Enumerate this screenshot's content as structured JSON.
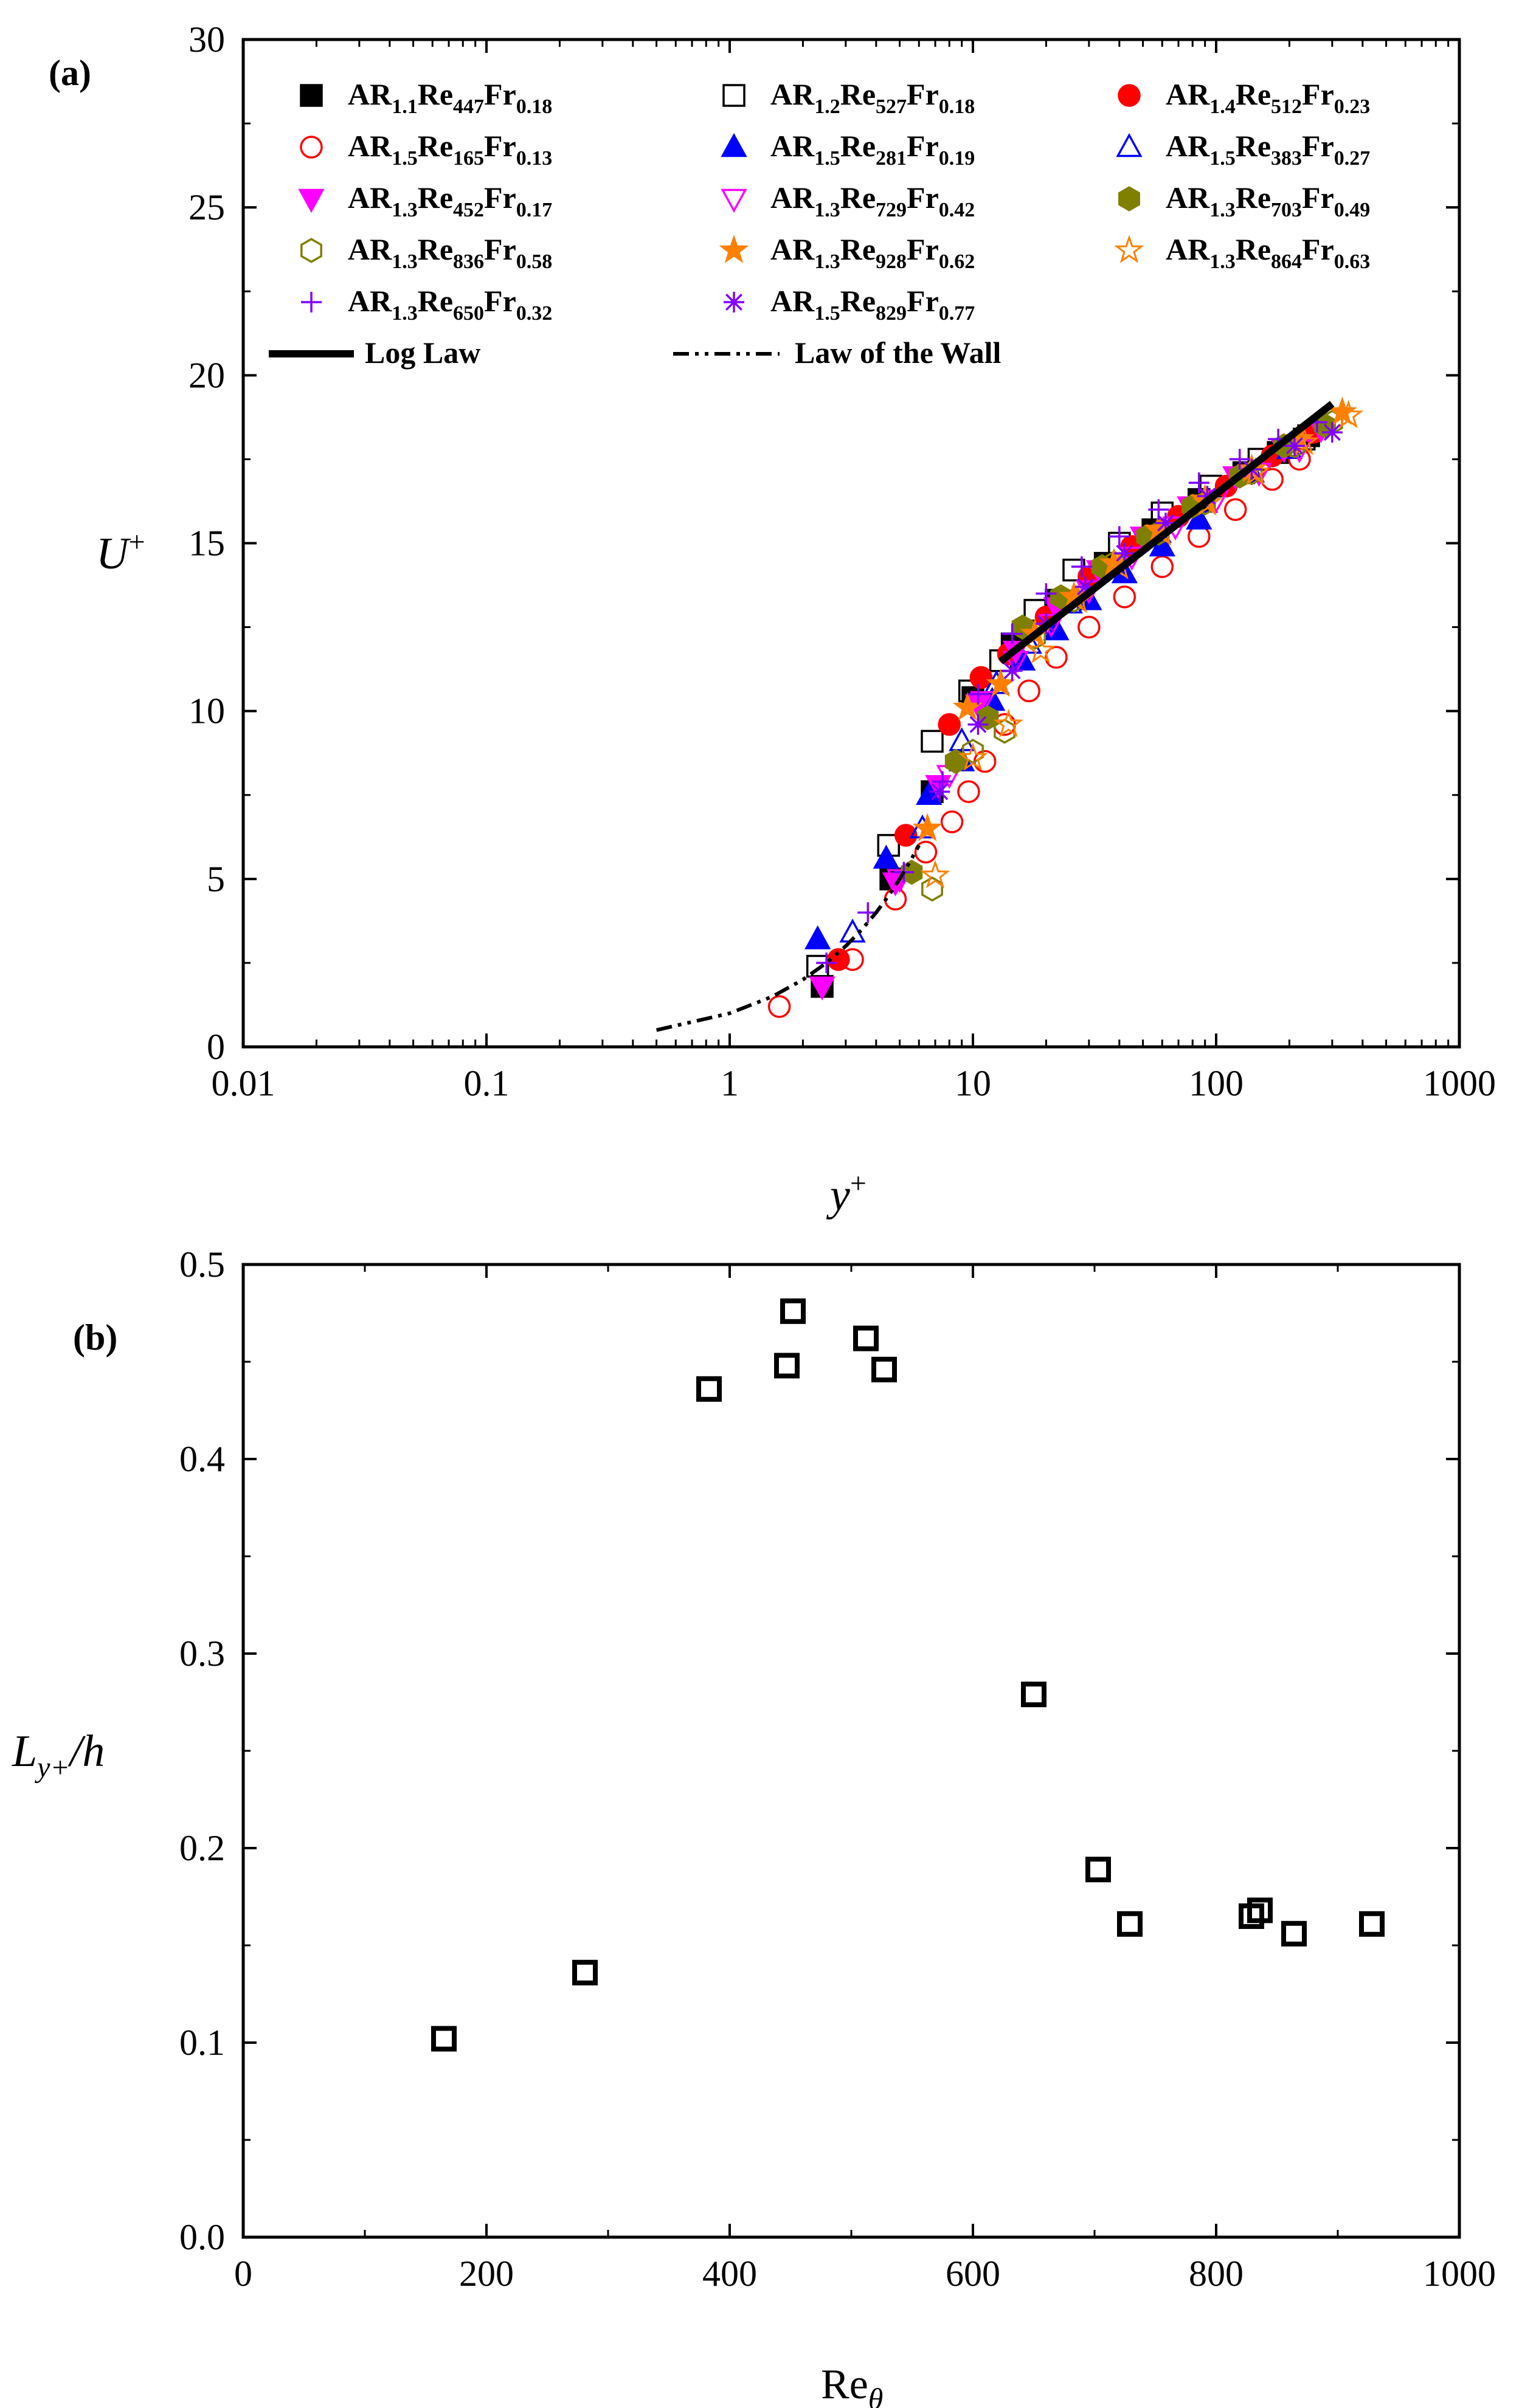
{
  "colors": {
    "black": "#000000",
    "red": "#ff0000",
    "blue": "#0000ff",
    "magenta": "#ff00ff",
    "olive": "#808000",
    "orange": "#ff8000",
    "violet": "#8000ff"
  },
  "chart_data": [
    {
      "panel_label": "(a)",
      "type": "scatter",
      "xscale": "log",
      "xlim": [
        0.01,
        1000
      ],
      "ylim": [
        0,
        30
      ],
      "xlabel": "y",
      "xlabel_sup": "+",
      "ylabel": "U",
      "ylabel_sup": "+",
      "x_ticks": [
        0.01,
        0.1,
        1,
        10,
        100,
        1000
      ],
      "x_tick_labels": [
        "0.01",
        "0.1",
        "1",
        "10",
        "100",
        "1000"
      ],
      "y_ticks": [
        0,
        5,
        10,
        15,
        20,
        25,
        30
      ],
      "y_tick_labels": [
        "0",
        "5",
        "10",
        "15",
        "20",
        "25",
        "30"
      ],
      "legend_position": "top",
      "series": [
        {
          "label": "AR",
          "ar": "1.1",
          "re": "447",
          "fr": "0.18",
          "marker": "square",
          "filled": true,
          "color": "#000000",
          "x": [
            2.4,
            4.6,
            6.8,
            10.0,
            14.5,
            22,
            35,
            55,
            85,
            130,
            180,
            240
          ],
          "y": [
            1.8,
            5.0,
            7.6,
            10.4,
            12.0,
            13.3,
            14.4,
            15.4,
            16.3,
            17.1,
            17.7,
            18.2
          ]
        },
        {
          "label": "AR",
          "ar": "1.2",
          "re": "527",
          "fr": "0.18",
          "marker": "square",
          "filled": false,
          "color": "#000000",
          "x": [
            2.3,
            4.5,
            6.8,
            9.7,
            13.0,
            18,
            26,
            40,
            60,
            95,
            150,
            230
          ],
          "y": [
            2.4,
            6.0,
            9.1,
            10.6,
            11.5,
            13.0,
            14.2,
            15.0,
            15.9,
            16.7,
            17.5,
            18.1
          ]
        },
        {
          "label": "AR",
          "ar": "1.4",
          "re": "512",
          "fr": "0.23",
          "marker": "circle",
          "filled": true,
          "color": "#ff0000",
          "x": [
            2.8,
            5.3,
            8.0,
            10.8,
            14.0,
            20,
            30,
            45,
            70,
            110,
            170,
            250
          ],
          "y": [
            2.6,
            6.3,
            9.6,
            11.0,
            11.7,
            12.8,
            14.0,
            14.9,
            15.8,
            16.7,
            17.6,
            18.3
          ]
        },
        {
          "label": "AR",
          "ar": "1.5",
          "re": "165",
          "fr": "0.13",
          "marker": "circle",
          "filled": false,
          "color": "#ff0000",
          "x": [
            1.6,
            3.2,
            4.8,
            6.4,
            8.2,
            9.6,
            11.2,
            13.5,
            17,
            22,
            30,
            42,
            60,
            85,
            120,
            170,
            220
          ],
          "y": [
            1.2,
            2.6,
            4.4,
            5.8,
            6.7,
            7.6,
            8.5,
            9.6,
            10.6,
            11.6,
            12.5,
            13.4,
            14.3,
            15.2,
            16.0,
            16.9,
            17.5
          ]
        },
        {
          "label": "AR",
          "ar": "1.5",
          "re": "281",
          "fr": "0.19",
          "marker": "triangle-up",
          "filled": true,
          "color": "#0000ff",
          "x": [
            2.3,
            4.4,
            6.6,
            9.0,
            12.0,
            16,
            22,
            30,
            42,
            60,
            85
          ],
          "y": [
            3.2,
            5.6,
            7.5,
            8.5,
            10.3,
            11.5,
            12.4,
            13.3,
            14.1,
            14.9,
            15.7
          ]
        },
        {
          "label": "AR",
          "ar": "1.5",
          "re": "383",
          "fr": "0.27",
          "marker": "triangle-up",
          "filled": false,
          "color": "#0000ff",
          "x": [
            3.2,
            6.2,
            9.0,
            12.5,
            17,
            25,
            38,
            58,
            90,
            140,
            200
          ],
          "y": [
            3.4,
            6.5,
            9.1,
            10.8,
            12.0,
            13.2,
            14.3,
            15.3,
            16.2,
            17.1,
            17.8
          ]
        },
        {
          "label": "AR",
          "ar": "1.3",
          "re": "452",
          "fr": "0.17",
          "marker": "triangle-down",
          "filled": true,
          "color": "#ff00ff",
          "x": [
            2.4,
            4.8,
            7.2,
            10.5,
            15,
            22,
            33,
            50,
            78,
            120,
            190,
            270
          ],
          "y": [
            1.8,
            4.9,
            7.8,
            10.2,
            11.8,
            13.1,
            14.2,
            15.2,
            16.1,
            17.0,
            17.8,
            18.4
          ]
        },
        {
          "label": "AR",
          "ar": "1.3",
          "re": "729",
          "fr": "0.42",
          "marker": "triangle-down",
          "filled": false,
          "color": "#ff00ff",
          "x": [
            5.0,
            8.0,
            11.0,
            15,
            21,
            30,
            45,
            68,
            100,
            150,
            220
          ],
          "y": [
            5.0,
            8.1,
            10.3,
            11.5,
            12.6,
            13.6,
            14.6,
            15.5,
            16.3,
            17.1,
            17.8
          ]
        },
        {
          "label": "AR",
          "ar": "1.3",
          "re": "703",
          "fr": "0.49",
          "marker": "hexagon",
          "filled": true,
          "color": "#808000",
          "x": [
            5.6,
            8.5,
            11.5,
            16,
            23,
            34,
            52,
            80,
            125,
            190,
            280
          ],
          "y": [
            5.2,
            8.5,
            9.8,
            12.5,
            13.4,
            14.3,
            15.2,
            16.1,
            17.0,
            17.9,
            18.5
          ]
        },
        {
          "label": "AR",
          "ar": "1.3",
          "re": "836",
          "fr": "0.58",
          "marker": "hexagon",
          "filled": false,
          "color": "#808000",
          "x": [
            6.8,
            10.0,
            13.5,
            18,
            26,
            38,
            58,
            90,
            140,
            210,
            300
          ],
          "y": [
            4.7,
            8.8,
            9.4,
            12.2,
            13.3,
            14.4,
            15.3,
            16.2,
            17.1,
            17.9,
            18.6
          ]
        },
        {
          "label": "AR",
          "ar": "1.3",
          "re": "928",
          "fr": "0.62",
          "marker": "star",
          "filled": true,
          "color": "#ff8000",
          "x": [
            6.5,
            9.5,
            13.0,
            18,
            26,
            38,
            58,
            90,
            140,
            220,
            330
          ],
          "y": [
            6.5,
            10.1,
            10.8,
            12.3,
            13.4,
            14.4,
            15.4,
            16.3,
            17.2,
            18.1,
            18.9
          ]
        },
        {
          "label": "AR",
          "ar": "1.3",
          "re": "864",
          "fr": "0.63",
          "marker": "star",
          "filled": false,
          "color": "#ff8000",
          "x": [
            7.0,
            10.0,
            14.0,
            19,
            27,
            40,
            60,
            92,
            145,
            230,
            350
          ],
          "y": [
            5.1,
            8.6,
            9.6,
            11.8,
            13.3,
            14.3,
            15.3,
            16.2,
            17.1,
            18.0,
            18.8
          ]
        },
        {
          "label": "AR",
          "ar": "1.3",
          "re": "650",
          "fr": "0.32",
          "marker": "plus",
          "filled": false,
          "color": "#8000ff",
          "x": [
            2.5,
            3.7,
            5.2,
            7.5,
            10.5,
            14.5,
            20,
            28,
            40,
            58,
            85,
            125,
            180,
            260
          ],
          "y": [
            2.5,
            4.0,
            5.2,
            7.9,
            10.5,
            12.3,
            13.5,
            14.3,
            15.2,
            16.0,
            16.8,
            17.5,
            18.1,
            18.6
          ]
        },
        {
          "label": "AR",
          "ar": "1.5",
          "re": "829",
          "fr": "0.77",
          "marker": "asterisk",
          "filled": false,
          "color": "#8000ff",
          "x": [
            7.3,
            10.5,
            14.5,
            20,
            29,
            42,
            62,
            92,
            140,
            210,
            300
          ],
          "y": [
            7.6,
            9.6,
            11.2,
            12.6,
            13.7,
            14.7,
            15.6,
            16.4,
            17.2,
            17.9,
            18.3
          ]
        }
      ],
      "lines": [
        {
          "label": "Log Law",
          "style": "solid",
          "color": "#000000",
          "x": [
            13,
            300
          ],
          "y": [
            11.48,
            19.15
          ]
        },
        {
          "label": "Law of the Wall",
          "style": "dash-dot-dot",
          "color": "#000000",
          "x": [
            0.5,
            1,
            1.5,
            2,
            2.5,
            3,
            3.5,
            4,
            4.5,
            5,
            5.5,
            6
          ],
          "y": [
            0.5,
            1.0,
            1.5,
            2.0,
            2.5,
            3.0,
            3.5,
            4.0,
            4.5,
            5.0,
            5.5,
            6.0
          ]
        }
      ]
    },
    {
      "panel_label": "(b)",
      "type": "scatter",
      "xlim": [
        0,
        1000
      ],
      "ylim": [
        0,
        0.5
      ],
      "xlabel": "Re",
      "xlabel_sub": "θ",
      "ylabel": "L",
      "ylabel_sub": "y+",
      "ylabel_tail": "/h",
      "x_ticks": [
        0,
        200,
        400,
        600,
        800,
        1000
      ],
      "x_tick_labels": [
        "0",
        "200",
        "400",
        "600",
        "800",
        "1000"
      ],
      "y_ticks": [
        0,
        0.1,
        0.2,
        0.3,
        0.4,
        0.5
      ],
      "y_tick_labels": [
        "0.0",
        "0.1",
        "0.2",
        "0.3",
        "0.4",
        "0.5"
      ],
      "series": [
        {
          "name": "L_y+/h",
          "marker": "square",
          "filled": false,
          "color": "#000000",
          "x": [
            165,
            281,
            383,
            447,
            452,
            512,
            527,
            650,
            703,
            729,
            829,
            836,
            864,
            928
          ],
          "y": [
            0.102,
            0.136,
            0.436,
            0.448,
            0.476,
            0.462,
            0.446,
            0.279,
            0.189,
            0.161,
            0.165,
            0.168,
            0.156,
            0.161
          ]
        }
      ]
    }
  ]
}
